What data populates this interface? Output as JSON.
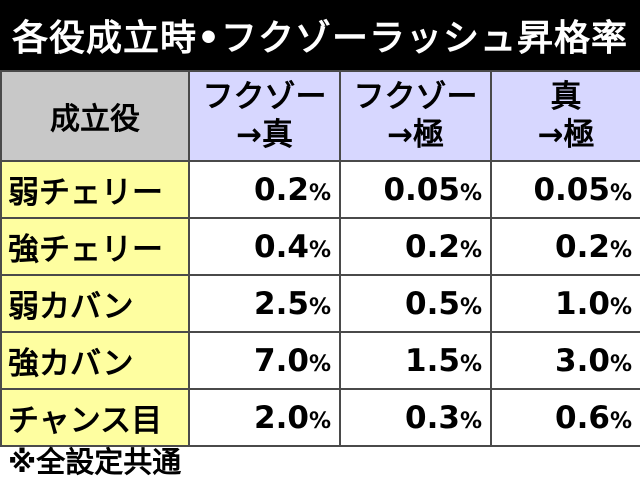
{
  "title": "各役成立時•フクゾーラッシュ昇格率",
  "table": {
    "corner_label": "成立役",
    "columns": [
      "フクゾー\n→真",
      "フクゾー\n→極",
      "真\n→極"
    ],
    "unit": "%",
    "rows": [
      {
        "label": "弱チェリー",
        "values": [
          "0.2",
          "0.05",
          "0.05"
        ]
      },
      {
        "label": "強チェリー",
        "values": [
          "0.4",
          "0.2",
          "0.2"
        ]
      },
      {
        "label": "弱カバン",
        "values": [
          "2.5",
          "0.5",
          "1.0"
        ]
      },
      {
        "label": "強カバン",
        "values": [
          "7.0",
          "1.5",
          "3.0"
        ]
      },
      {
        "label": "チャンス目",
        "values": [
          "2.0",
          "0.3",
          "0.6"
        ]
      }
    ]
  },
  "footnote": "※全設定共通",
  "colors": {
    "title_bg": "#000000",
    "corner_bg": "#c8c8c8",
    "column_header_bg": "#d7d7ff",
    "row_header_bg": "#fefea0",
    "border": "#4a4a4a"
  }
}
